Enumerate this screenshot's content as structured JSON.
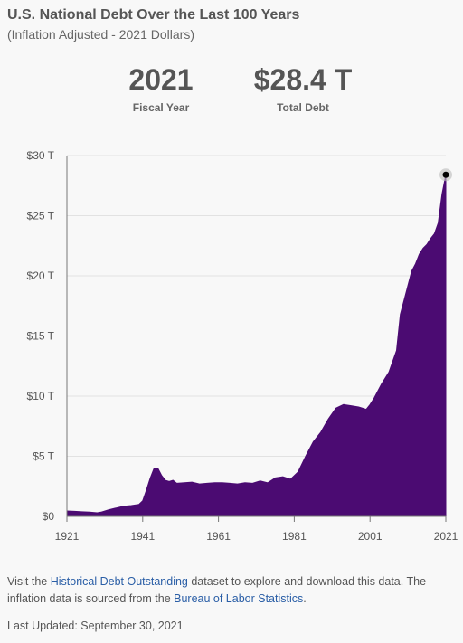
{
  "header": {
    "title": "U.S. National Debt Over the Last 100 Years",
    "subtitle": "(Inflation Adjusted - 2021 Dollars)"
  },
  "stats": {
    "year_value": "2021",
    "year_label": "Fiscal Year",
    "debt_value": "$28.4 T",
    "debt_label": "Total Debt"
  },
  "footer": {
    "text_1": "Visit the ",
    "link_1": "Historical Debt Outstanding",
    "text_2": " dataset to explore and download this data. The inflation data is sourced from the ",
    "link_2": "Bureau of Labor Statistics",
    "text_3": ".",
    "updated": "Last Updated: September 30, 2021"
  },
  "colors": {
    "fill": "#4b0b72",
    "marker": "#000000",
    "grid": "#e2e2e2"
  },
  "chart_data": {
    "type": "area",
    "title": "U.S. National Debt Over the Last 100 Years",
    "subtitle": "(Inflation Adjusted - 2021 Dollars)",
    "xlabel": "",
    "ylabel": "",
    "xlim": [
      1921,
      2021
    ],
    "ylim": [
      0,
      30
    ],
    "grid": true,
    "x_ticks": [
      "1921",
      "1941",
      "1961",
      "1981",
      "2001",
      "2021"
    ],
    "y_ticks": [
      "$0",
      "$5 T",
      "$10 T",
      "$15 T",
      "$20 T",
      "$25 T",
      "$30 T"
    ],
    "highlight": {
      "x": 2021,
      "y": 28.4
    },
    "series": [
      {
        "x": [
          1921,
          1923,
          1925,
          1927,
          1929,
          1930,
          1932,
          1934,
          1936,
          1938,
          1940,
          1941,
          1942,
          1943,
          1944,
          1945,
          1946,
          1947,
          1948,
          1949,
          1950,
          1952,
          1954,
          1956,
          1958,
          1960,
          1962,
          1964,
          1966,
          1968,
          1970,
          1972,
          1974,
          1976,
          1978,
          1980,
          1982,
          1984,
          1986,
          1988,
          1990,
          1992,
          1994,
          1996,
          1998,
          2000,
          2001,
          2002,
          2004,
          2006,
          2008,
          2009,
          2010,
          2011,
          2012,
          2013,
          2014,
          2015,
          2016,
          2017,
          2018,
          2019,
          2020,
          2021
        ],
        "y": [
          0.45,
          0.42,
          0.38,
          0.35,
          0.3,
          0.35,
          0.55,
          0.7,
          0.85,
          0.9,
          1.0,
          1.3,
          2.2,
          3.2,
          4.0,
          4.0,
          3.4,
          3.0,
          2.9,
          3.0,
          2.75,
          2.8,
          2.85,
          2.7,
          2.75,
          2.8,
          2.8,
          2.75,
          2.7,
          2.8,
          2.75,
          2.95,
          2.8,
          3.2,
          3.3,
          3.1,
          3.7,
          5.0,
          6.2,
          7.0,
          8.1,
          9.0,
          9.3,
          9.2,
          9.1,
          8.9,
          9.3,
          9.8,
          11.0,
          12.0,
          13.8,
          16.8,
          18.0,
          19.2,
          20.4,
          21.0,
          21.8,
          22.3,
          22.6,
          23.1,
          23.5,
          24.4,
          26.8,
          28.4
        ]
      }
    ]
  }
}
